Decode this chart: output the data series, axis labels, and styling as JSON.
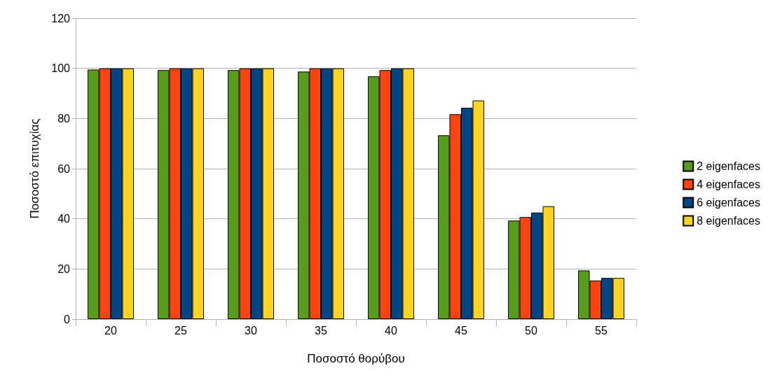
{
  "chart_data": {
    "type": "bar",
    "xlabel": "Ποσοστό θορύβου",
    "ylabel": "Ποσοστό επιτυχίας",
    "categories": [
      "20",
      "25",
      "30",
      "35",
      "40",
      "45",
      "50",
      "55"
    ],
    "series": [
      {
        "name": "2 eigenfaces",
        "color": "#579d1c",
        "values": [
          99.5,
          99.3,
          99.3,
          98.7,
          96.8,
          73.3,
          39.3,
          19.4
        ]
      },
      {
        "name": "4 eigenfaces",
        "color": "#ff420e",
        "values": [
          100,
          100,
          100,
          100,
          99.3,
          81.7,
          40.7,
          15.4
        ]
      },
      {
        "name": "6 eigenfaces",
        "color": "#004586",
        "values": [
          100,
          100,
          100,
          100,
          100,
          84.3,
          42.5,
          16.4
        ]
      },
      {
        "name": "8 eigenfaces",
        "color": "#ffd320",
        "values": [
          100,
          100,
          100,
          100,
          100,
          87.2,
          45,
          16.4
        ]
      }
    ],
    "ylim": [
      0,
      120
    ],
    "yticks": [
      0,
      20,
      40,
      60,
      80,
      100,
      120
    ],
    "grid": "y",
    "legend": "right"
  }
}
